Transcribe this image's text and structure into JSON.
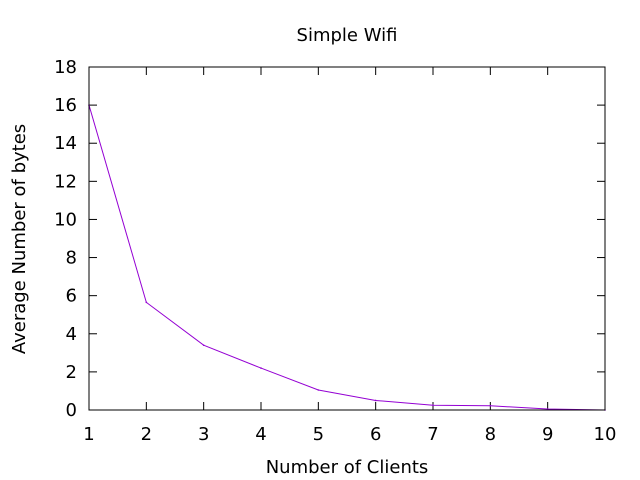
{
  "chart_data": {
    "type": "line",
    "title": "Simple Wifi",
    "xlabel": "Number of Clients",
    "ylabel": "Average Number of bytes",
    "xlim": [
      1,
      10
    ],
    "ylim": [
      0,
      18
    ],
    "x_ticks": [
      1,
      2,
      3,
      4,
      5,
      6,
      7,
      8,
      9,
      10
    ],
    "y_ticks": [
      0,
      2,
      4,
      6,
      8,
      10,
      12,
      14,
      16,
      18
    ],
    "grid": false,
    "legend": "none",
    "series": [
      {
        "color": "#9400d3",
        "x": [
          1,
          2,
          3,
          4,
          5,
          6,
          7,
          8,
          9,
          10
        ],
        "y": [
          16.0,
          5.65,
          3.4,
          2.2,
          1.05,
          0.5,
          0.25,
          0.22,
          0.05,
          0.0
        ]
      }
    ]
  }
}
